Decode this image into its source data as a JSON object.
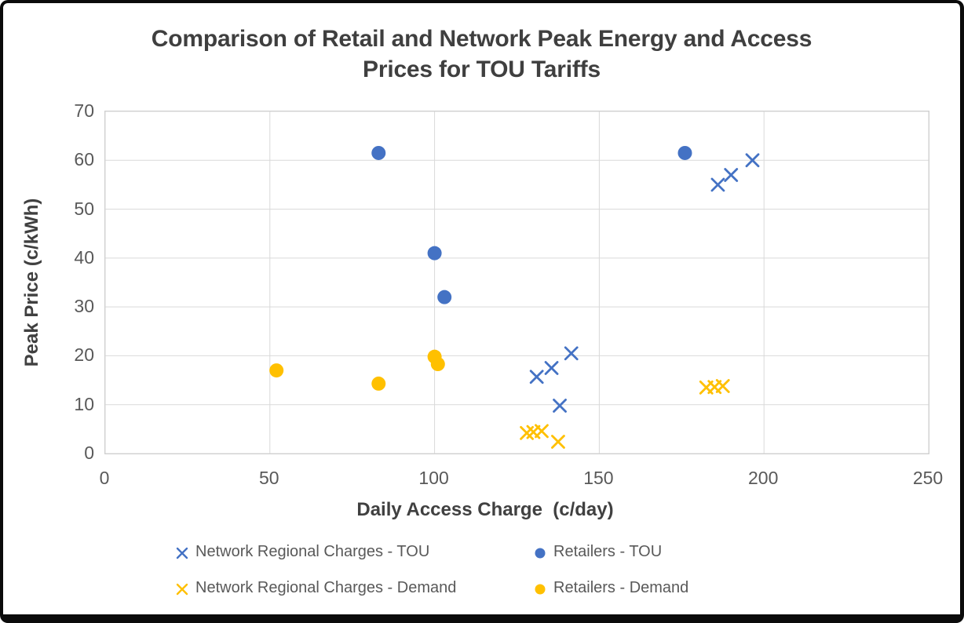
{
  "title": "Comparison of Retail and Network Peak Energy and Access\nPrices for TOU Tariffs",
  "chart_data": {
    "type": "scatter",
    "title": "Comparison of Retail and Network Peak Energy and Access Prices for TOU Tariffs",
    "xlabel": "Daily Access Charge  (c/day)",
    "ylabel": "Peak Price (c/kWh)",
    "xlim": [
      0,
      250
    ],
    "ylim": [
      0,
      70
    ],
    "x_ticks": [
      0,
      50,
      100,
      150,
      200,
      250
    ],
    "y_ticks": [
      0,
      10,
      20,
      30,
      40,
      50,
      60,
      70
    ],
    "grid": true,
    "legend_position": "bottom",
    "colors": {
      "blue": "#4472C4",
      "gold": "#FFC000",
      "gridline": "#d9d9d9",
      "tick_text": "#595959",
      "title_text": "#3f3f3f"
    },
    "series": [
      {
        "name": "Network Regional Charges - TOU",
        "marker": "x",
        "color": "#4472C4",
        "points": [
          [
            186,
            55
          ],
          [
            190,
            57
          ],
          [
            196.5,
            60
          ],
          [
            131,
            15.7
          ],
          [
            135.5,
            17.5
          ],
          [
            141.5,
            20.5
          ],
          [
            138,
            9.8
          ]
        ]
      },
      {
        "name": "Retailers - TOU",
        "marker": "circle",
        "color": "#4472C4",
        "points": [
          [
            83,
            61.5
          ],
          [
            176,
            61.5
          ],
          [
            100,
            41
          ],
          [
            103,
            32
          ]
        ]
      },
      {
        "name": "Network Regional Charges - Demand",
        "marker": "x",
        "color": "#FFC000",
        "points": [
          [
            128,
            4.2
          ],
          [
            130,
            4.4
          ],
          [
            132.5,
            4.6
          ],
          [
            137.5,
            2.4
          ],
          [
            182.5,
            13.5
          ],
          [
            185,
            13.6
          ],
          [
            187.5,
            13.8
          ]
        ]
      },
      {
        "name": "Retailers - Demand",
        "marker": "circle",
        "color": "#FFC000",
        "points": [
          [
            52,
            17
          ],
          [
            83,
            14.3
          ],
          [
            100,
            19.8
          ],
          [
            101,
            18.3
          ]
        ]
      }
    ]
  }
}
